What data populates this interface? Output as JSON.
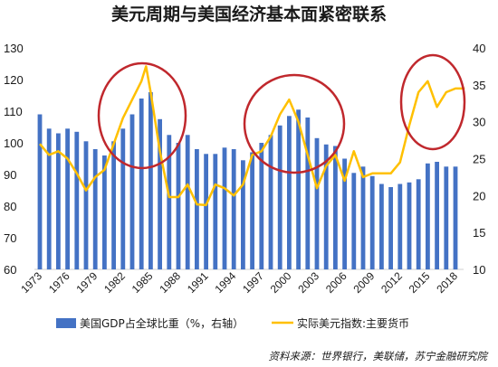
{
  "chart_data": {
    "type": "bar+line",
    "title": "美元周期与美国经济基本面紧密联系",
    "source": "资料来源：世界银行，美联储，苏宁金融研究院",
    "left_axis": {
      "ylim": [
        60,
        130
      ],
      "ticks": [
        60,
        70,
        80,
        90,
        100,
        110,
        120,
        130
      ]
    },
    "right_axis": {
      "ylim": [
        10,
        40
      ],
      "ticks": [
        10,
        15,
        20,
        25,
        30,
        35,
        40
      ]
    },
    "x_tick_labels": [
      "1973",
      "1976",
      "1979",
      "1982",
      "1985",
      "1988",
      "1991",
      "1994",
      "1997",
      "2000",
      "2003",
      "2006",
      "2009",
      "2012",
      "2015",
      "2018"
    ],
    "bar_series": {
      "name": "美国GDP占全球比重（%，右轴）",
      "color": "#4472c4",
      "x": [
        1973,
        1974,
        1975,
        1976,
        1977,
        1978,
        1979,
        1980,
        1981,
        1982,
        1983,
        1984,
        1985,
        1986,
        1987,
        1988,
        1989,
        1990,
        1991,
        1992,
        1993,
        1994,
        1995,
        1996,
        1997,
        1998,
        1999,
        2000,
        2001,
        2002,
        2003,
        2004,
        2005,
        2006,
        2007,
        2008,
        2009,
        2010,
        2011,
        2012,
        2013,
        2014,
        2015,
        2016,
        2017,
        2018
      ],
      "values": [
        109,
        104.5,
        103,
        104.5,
        103.5,
        100.5,
        98,
        96,
        100.5,
        104.5,
        109,
        114,
        116,
        107.5,
        102.5,
        100,
        102.5,
        98,
        96.5,
        96.5,
        98.5,
        98,
        94.5,
        97,
        100,
        102.5,
        105.5,
        108.5,
        110.5,
        108,
        101.5,
        99.5,
        99,
        95,
        90.5,
        92.5,
        89.5,
        87,
        86,
        87,
        87.5,
        88.5,
        93.5,
        94,
        92.5,
        92.5
      ]
    },
    "line_series": {
      "name": "实际美元指数:主要货币",
      "color": "#ffc000",
      "x": [
        1973,
        1974,
        1975,
        1976,
        1977,
        1978,
        1979,
        1980,
        1981,
        1982,
        1983,
        1984,
        1984.5,
        1985,
        1986,
        1987,
        1988,
        1989,
        1990,
        1991,
        1992,
        1993,
        1994,
        1995,
        1996,
        1997,
        1998,
        1999,
        2000,
        2001,
        2002,
        2003,
        2004,
        2005,
        2006,
        2007,
        2008,
        2009,
        2010,
        2011,
        2012,
        2013,
        2014,
        2015,
        2016,
        2017,
        2018,
        2019
      ],
      "values": [
        27,
        25.5,
        26,
        25,
        23,
        20.7,
        22.5,
        23.5,
        27,
        30.5,
        33,
        35.5,
        37.5,
        34,
        26,
        19.8,
        19.8,
        21.5,
        18.8,
        18.7,
        21.5,
        21,
        20,
        21.5,
        25.5,
        26,
        28,
        31,
        33,
        30,
        25.5,
        21,
        24,
        25.5,
        22,
        26,
        22.5,
        23,
        23,
        23,
        24.5,
        29.5,
        34,
        35.5,
        32,
        34,
        34.5,
        34.5
      ]
    },
    "legend_position": "bottom",
    "annotation_circles": 3,
    "grid": false
  }
}
